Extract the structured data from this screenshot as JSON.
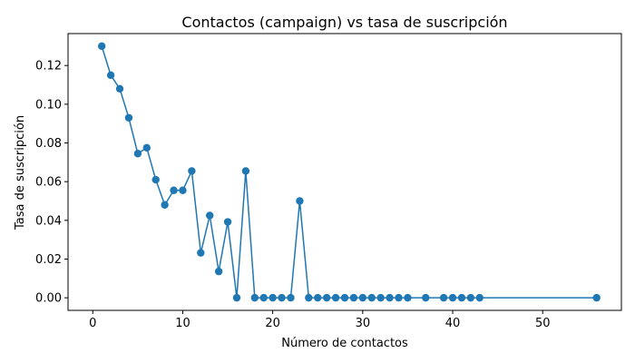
{
  "chart_data": {
    "type": "line",
    "title": "Contactos (campaign) vs tasa de suscripción",
    "xlabel": "Número de contactos",
    "ylabel": "Tasa de suscripción",
    "xlim": [
      -2.75,
      58.75
    ],
    "ylim": [
      -0.0065,
      0.1365
    ],
    "xticks": [
      0,
      10,
      20,
      30,
      40,
      50
    ],
    "xtick_labels": [
      "0",
      "10",
      "20",
      "30",
      "40",
      "50"
    ],
    "yticks": [
      0.0,
      0.02,
      0.04,
      0.06,
      0.08,
      0.1,
      0.12
    ],
    "ytick_labels": [
      "0.00",
      "0.02",
      "0.04",
      "0.06",
      "0.08",
      "0.10",
      "0.12"
    ],
    "grid": false,
    "color": "#1f77b4",
    "marker": "circle",
    "series": [
      {
        "x": [
          1,
          2,
          3,
          4,
          5,
          6,
          7,
          8,
          9,
          10,
          11,
          12,
          13,
          14,
          15,
          16,
          17,
          18,
          19,
          20,
          21,
          22,
          23,
          24,
          25,
          26,
          27,
          28,
          29,
          30,
          31,
          32,
          33,
          34,
          35,
          37,
          39,
          40,
          41,
          42,
          43,
          56
        ],
        "values": [
          0.13,
          0.115,
          0.108,
          0.093,
          0.0745,
          0.0775,
          0.061,
          0.048,
          0.0555,
          0.0555,
          0.0655,
          0.0232,
          0.0425,
          0.0136,
          0.0392,
          0.0,
          0.0655,
          0.0,
          0.0,
          0.0,
          0.0,
          0.0,
          0.05,
          0.0,
          0.0,
          0.0,
          0.0,
          0.0,
          0.0,
          0.0,
          0.0,
          0.0,
          0.0,
          0.0,
          0.0,
          0.0,
          0.0,
          0.0,
          0.0,
          0.0,
          0.0,
          0.0
        ]
      }
    ]
  }
}
